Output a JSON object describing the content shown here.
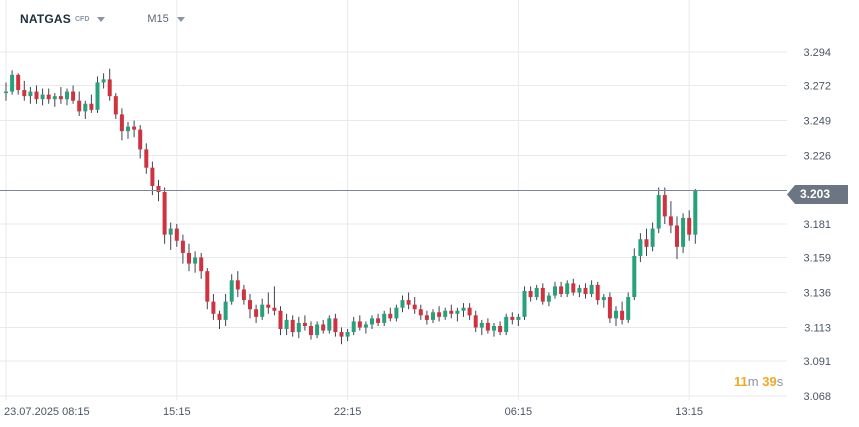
{
  "header": {
    "symbol": "NATGAS",
    "instrument_type": "CFD",
    "timeframe": "M15"
  },
  "current_price": "3.203",
  "countdown": {
    "minutes": "11",
    "minutes_unit": "m",
    "seconds": "39",
    "seconds_unit": "s"
  },
  "colors": {
    "up": "#26a17b",
    "down": "#d0333f",
    "price_line": "#7d8794",
    "badge": "#6c7682",
    "countdown": "#f5a623",
    "grid": "#e6e9ee"
  },
  "chart_data": {
    "type": "candlestick",
    "title": "",
    "y_ticks": [
      "3.294",
      "3.272",
      "3.249",
      "3.226",
      "3.203",
      "3.181",
      "3.159",
      "3.136",
      "3.113",
      "3.091",
      "3.068"
    ],
    "x_ticks": [
      {
        "label": "23.07.2025  08:15",
        "index": 0
      },
      {
        "label": "15:15",
        "index": 28
      },
      {
        "label": "22:15",
        "index": 56
      },
      {
        "label": "06:15",
        "index": 84
      },
      {
        "label": "13:15",
        "index": 112
      }
    ],
    "ylim": [
      3.058,
      3.306
    ],
    "grid": true,
    "current_price": 3.203,
    "candles": [
      [
        3.267,
        3.274,
        3.262,
        3.268
      ],
      [
        3.268,
        3.282,
        3.266,
        3.279
      ],
      [
        3.279,
        3.28,
        3.266,
        3.269
      ],
      [
        3.269,
        3.275,
        3.262,
        3.265
      ],
      [
        3.265,
        3.271,
        3.26,
        3.268
      ],
      [
        3.268,
        3.272,
        3.26,
        3.263
      ],
      [
        3.263,
        3.27,
        3.259,
        3.266
      ],
      [
        3.266,
        3.27,
        3.26,
        3.263
      ],
      [
        3.263,
        3.267,
        3.258,
        3.265
      ],
      [
        3.265,
        3.271,
        3.26,
        3.263
      ],
      [
        3.263,
        3.27,
        3.259,
        3.268
      ],
      [
        3.268,
        3.272,
        3.26,
        3.262
      ],
      [
        3.262,
        3.268,
        3.252,
        3.255
      ],
      [
        3.255,
        3.262,
        3.25,
        3.26
      ],
      [
        3.26,
        3.266,
        3.254,
        3.256
      ],
      [
        3.256,
        3.278,
        3.254,
        3.274
      ],
      [
        3.274,
        3.28,
        3.27,
        3.276
      ],
      [
        3.276,
        3.283,
        3.262,
        3.265
      ],
      [
        3.265,
        3.267,
        3.25,
        3.253
      ],
      [
        3.253,
        3.257,
        3.236,
        3.242
      ],
      [
        3.242,
        3.248,
        3.237,
        3.245
      ],
      [
        3.245,
        3.249,
        3.238,
        3.243
      ],
      [
        3.243,
        3.246,
        3.224,
        3.23
      ],
      [
        3.23,
        3.234,
        3.214,
        3.218
      ],
      [
        3.218,
        3.222,
        3.2,
        3.206
      ],
      [
        3.206,
        3.21,
        3.196,
        3.202
      ],
      [
        3.202,
        3.205,
        3.168,
        3.174
      ],
      [
        3.174,
        3.182,
        3.164,
        3.178
      ],
      [
        3.178,
        3.181,
        3.166,
        3.17
      ],
      [
        3.17,
        3.174,
        3.155,
        3.162
      ],
      [
        3.162,
        3.168,
        3.15,
        3.155
      ],
      [
        3.155,
        3.163,
        3.149,
        3.159
      ],
      [
        3.159,
        3.162,
        3.145,
        3.15
      ],
      [
        3.15,
        3.152,
        3.125,
        3.13
      ],
      [
        3.13,
        3.135,
        3.118,
        3.122
      ],
      [
        3.122,
        3.124,
        3.112,
        3.118
      ],
      [
        3.118,
        3.135,
        3.114,
        3.13
      ],
      [
        3.13,
        3.148,
        3.128,
        3.144
      ],
      [
        3.144,
        3.15,
        3.133,
        3.138
      ],
      [
        3.138,
        3.141,
        3.128,
        3.131
      ],
      [
        3.131,
        3.135,
        3.119,
        3.125
      ],
      [
        3.125,
        3.128,
        3.116,
        3.12
      ],
      [
        3.12,
        3.132,
        3.118,
        3.128
      ],
      [
        3.128,
        3.136,
        3.122,
        3.126
      ],
      [
        3.126,
        3.14,
        3.121,
        3.124
      ],
      [
        3.124,
        3.127,
        3.108,
        3.112
      ],
      [
        3.112,
        3.122,
        3.108,
        3.118
      ],
      [
        3.118,
        3.121,
        3.107,
        3.11
      ],
      [
        3.11,
        3.12,
        3.106,
        3.116
      ],
      [
        3.116,
        3.121,
        3.111,
        3.114
      ],
      [
        3.114,
        3.117,
        3.105,
        3.108
      ],
      [
        3.108,
        3.117,
        3.106,
        3.115
      ],
      [
        3.115,
        3.118,
        3.109,
        3.111
      ],
      [
        3.111,
        3.121,
        3.109,
        3.119
      ],
      [
        3.119,
        3.122,
        3.107,
        3.11
      ],
      [
        3.11,
        3.113,
        3.102,
        3.107
      ],
      [
        3.107,
        3.112,
        3.104,
        3.11
      ],
      [
        3.11,
        3.12,
        3.108,
        3.117
      ],
      [
        3.117,
        3.121,
        3.111,
        3.113
      ],
      [
        3.113,
        3.117,
        3.109,
        3.115
      ],
      [
        3.115,
        3.121,
        3.112,
        3.119
      ],
      [
        3.119,
        3.122,
        3.114,
        3.116
      ],
      [
        3.116,
        3.124,
        3.114,
        3.122
      ],
      [
        3.122,
        3.126,
        3.117,
        3.119
      ],
      [
        3.119,
        3.128,
        3.117,
        3.126
      ],
      [
        3.126,
        3.134,
        3.123,
        3.131
      ],
      [
        3.131,
        3.136,
        3.125,
        3.128
      ],
      [
        3.128,
        3.133,
        3.122,
        3.125
      ],
      [
        3.125,
        3.128,
        3.118,
        3.121
      ],
      [
        3.121,
        3.124,
        3.115,
        3.118
      ],
      [
        3.118,
        3.125,
        3.116,
        3.123
      ],
      [
        3.123,
        3.127,
        3.117,
        3.12
      ],
      [
        3.12,
        3.126,
        3.118,
        3.124
      ],
      [
        3.124,
        3.128,
        3.119,
        3.122
      ],
      [
        3.122,
        3.126,
        3.117,
        3.124
      ],
      [
        3.124,
        3.129,
        3.12,
        3.126
      ],
      [
        3.126,
        3.129,
        3.118,
        3.121
      ],
      [
        3.121,
        3.124,
        3.11,
        3.113
      ],
      [
        3.113,
        3.118,
        3.108,
        3.116
      ],
      [
        3.116,
        3.119,
        3.109,
        3.111
      ],
      [
        3.111,
        3.116,
        3.107,
        3.114
      ],
      [
        3.114,
        3.117,
        3.108,
        3.11
      ],
      [
        3.11,
        3.122,
        3.108,
        3.12
      ],
      [
        3.12,
        3.123,
        3.115,
        3.118
      ],
      [
        3.118,
        3.122,
        3.114,
        3.12
      ],
      [
        3.12,
        3.14,
        3.118,
        3.137
      ],
      [
        3.137,
        3.14,
        3.13,
        3.133
      ],
      [
        3.133,
        3.141,
        3.131,
        3.139
      ],
      [
        3.139,
        3.142,
        3.128,
        3.13
      ],
      [
        3.13,
        3.136,
        3.127,
        3.134
      ],
      [
        3.134,
        3.143,
        3.132,
        3.14
      ],
      [
        3.14,
        3.143,
        3.133,
        3.135
      ],
      [
        3.135,
        3.144,
        3.133,
        3.142
      ],
      [
        3.142,
        3.145,
        3.134,
        3.136
      ],
      [
        3.136,
        3.141,
        3.133,
        3.139
      ],
      [
        3.139,
        3.142,
        3.132,
        3.135
      ],
      [
        3.135,
        3.144,
        3.133,
        3.141
      ],
      [
        3.141,
        3.143,
        3.128,
        3.131
      ],
      [
        3.131,
        3.135,
        3.126,
        3.133
      ],
      [
        3.133,
        3.136,
        3.116,
        3.119
      ],
      [
        3.119,
        3.127,
        3.114,
        3.124
      ],
      [
        3.124,
        3.13,
        3.115,
        3.118
      ],
      [
        3.118,
        3.136,
        3.116,
        3.133
      ],
      [
        3.133,
        3.165,
        3.131,
        3.16
      ],
      [
        3.16,
        3.175,
        3.156,
        3.171
      ],
      [
        3.171,
        3.178,
        3.16,
        3.166
      ],
      [
        3.166,
        3.182,
        3.163,
        3.178
      ],
      [
        3.178,
        3.205,
        3.175,
        3.2
      ],
      [
        3.2,
        3.205,
        3.181,
        3.186
      ],
      [
        3.186,
        3.196,
        3.175,
        3.18
      ],
      [
        3.18,
        3.186,
        3.158,
        3.166
      ],
      [
        3.166,
        3.188,
        3.162,
        3.185
      ],
      [
        3.185,
        3.19,
        3.17,
        3.174
      ],
      [
        3.174,
        3.204,
        3.168,
        3.203
      ]
    ]
  }
}
